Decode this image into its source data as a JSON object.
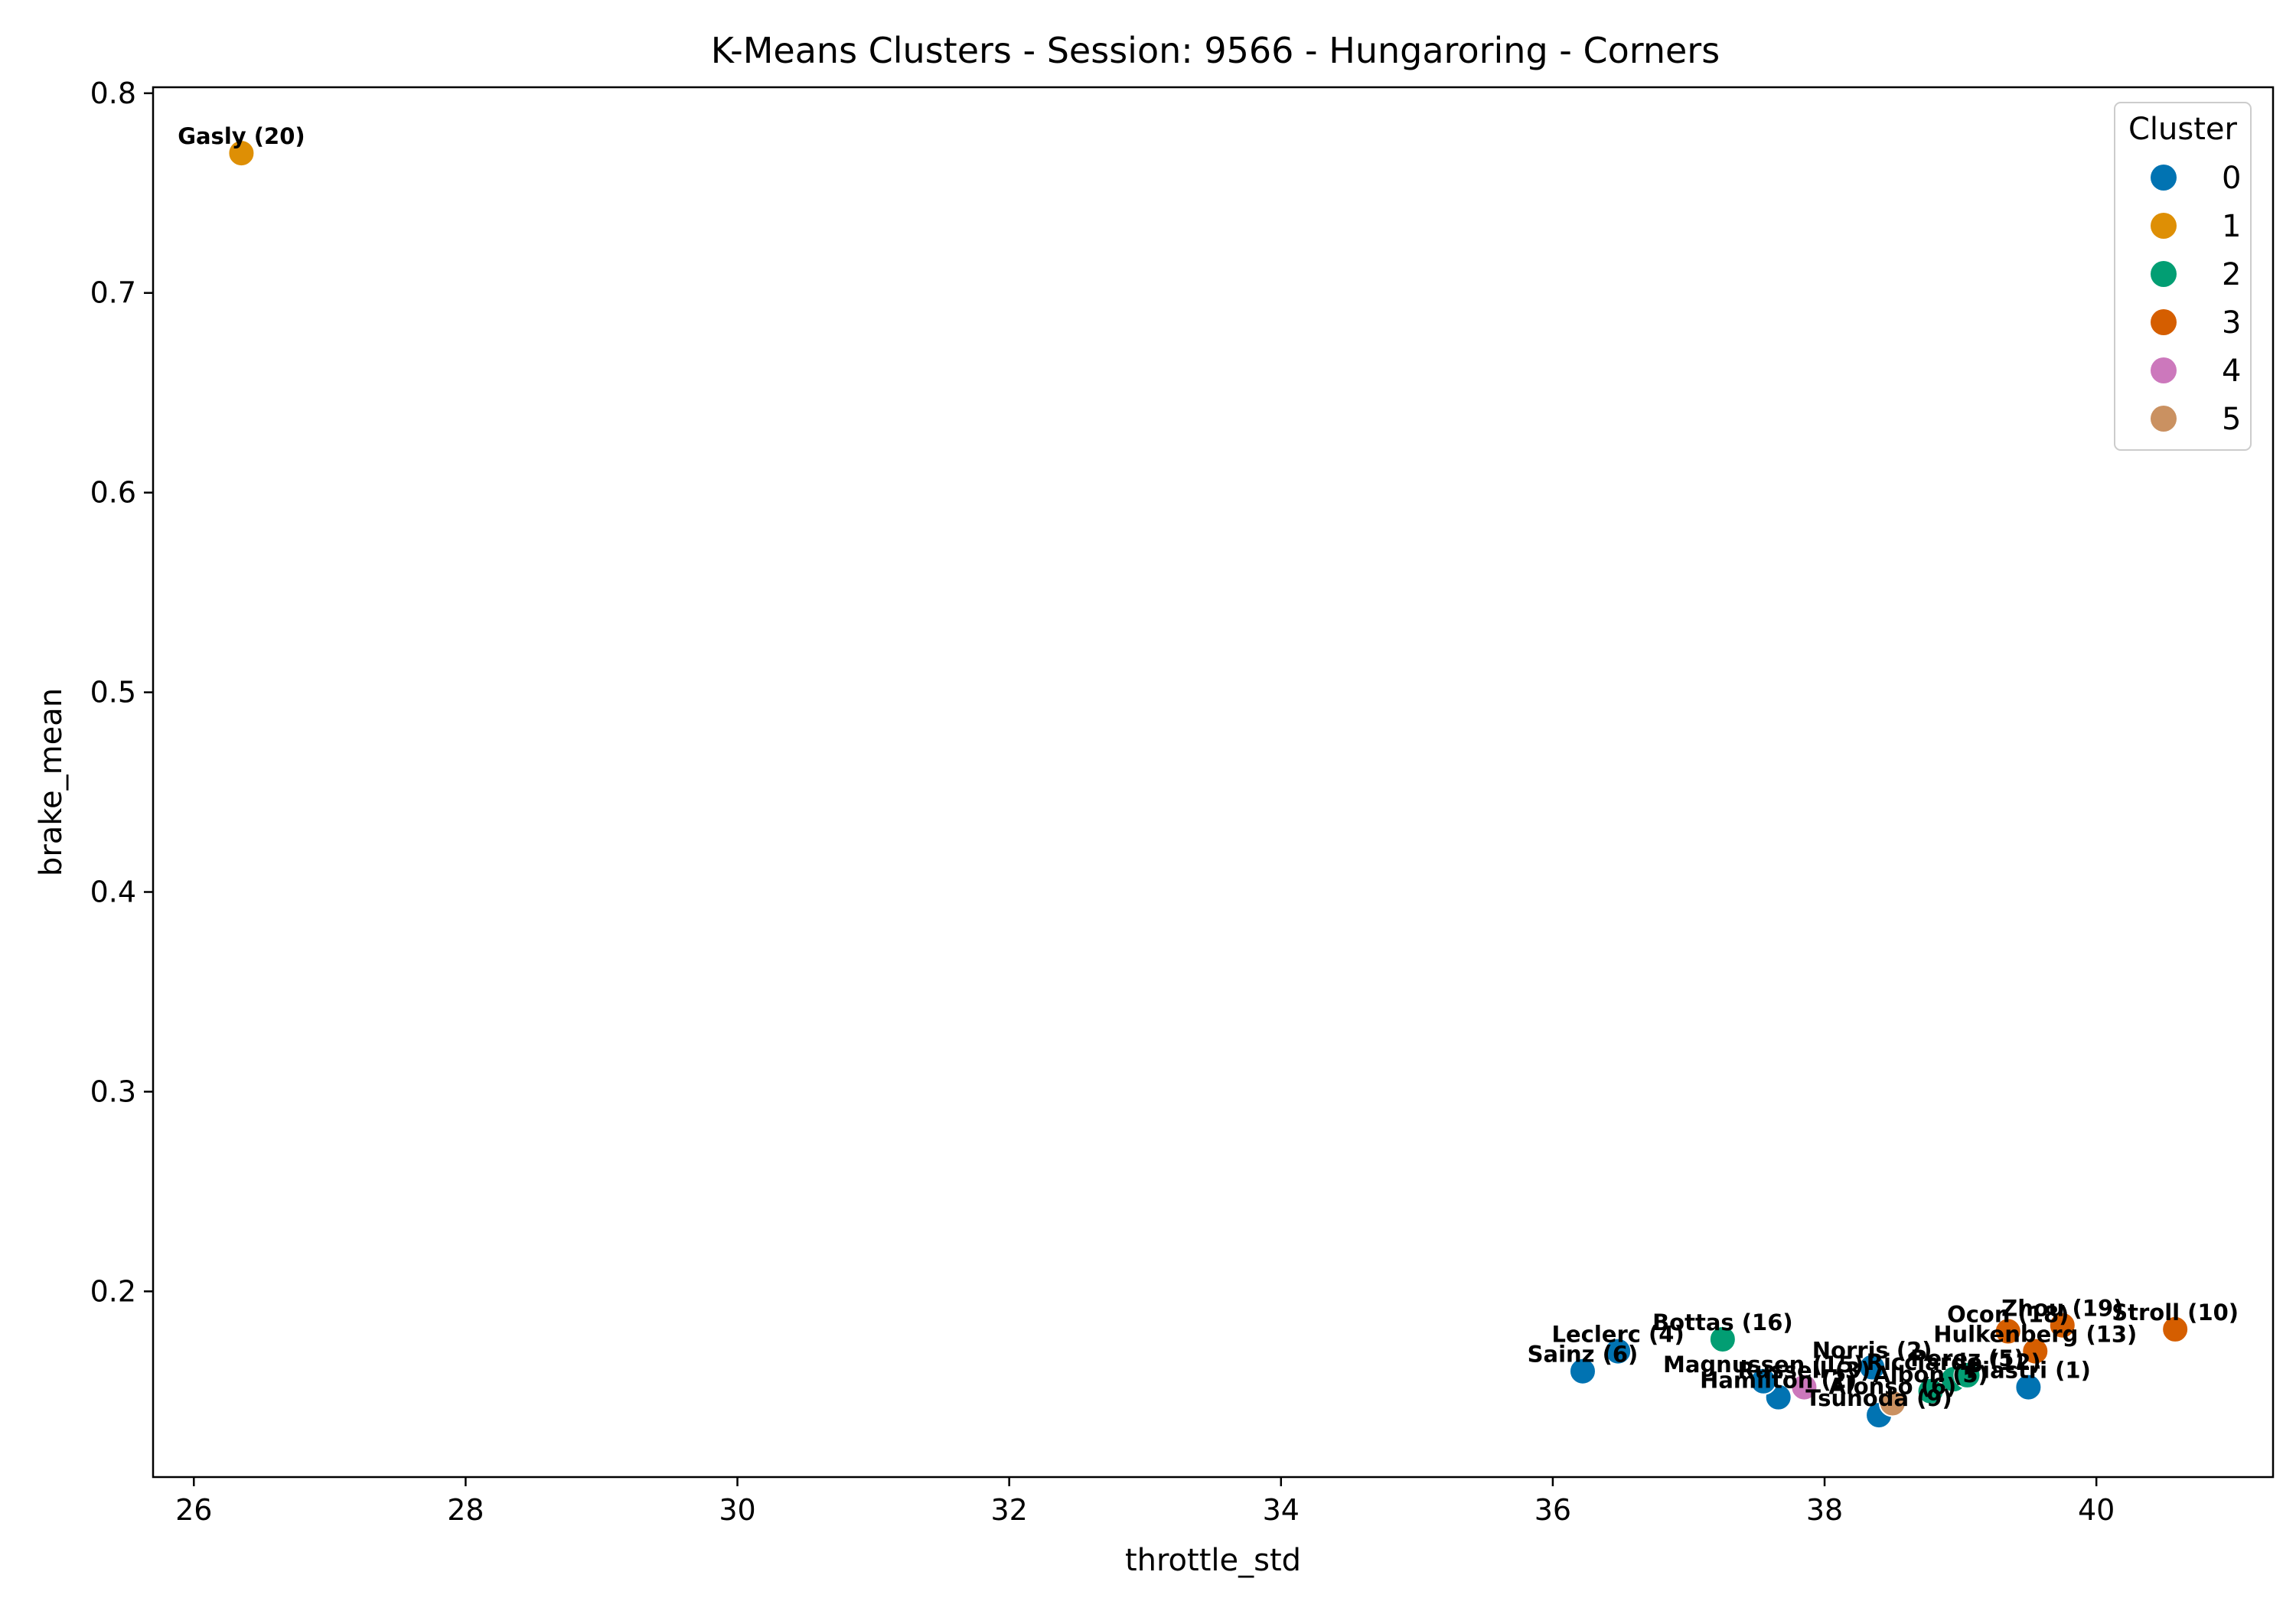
{
  "chart_data": {
    "type": "scatter",
    "title": "K-Means Clusters - Session: 9566 - Hungaroring - Corners",
    "xlabel": "throttle_std",
    "ylabel": "brake_mean",
    "xlim": [
      25.7,
      41.3
    ],
    "ylim": [
      0.107,
      0.803
    ],
    "xticks": [
      26,
      28,
      30,
      32,
      34,
      36,
      38,
      40
    ],
    "yticks": [
      0.2,
      0.3,
      0.4,
      0.5,
      0.6,
      0.7,
      0.8
    ],
    "xtick_labels": [
      "26",
      "28",
      "30",
      "32",
      "34",
      "36",
      "38",
      "40"
    ],
    "ytick_labels": [
      "0.2",
      "0.3",
      "0.4",
      "0.5",
      "0.6",
      "0.7",
      "0.8"
    ],
    "grid": false,
    "legend": {
      "title": "Cluster",
      "placement": "top-right",
      "entries": [
        {
          "label": "0",
          "color": "#0173b2"
        },
        {
          "label": "1",
          "color": "#de8f05"
        },
        {
          "label": "2",
          "color": "#029e73"
        },
        {
          "label": "3",
          "color": "#d55e00"
        },
        {
          "label": "4",
          "color": "#cc78bc"
        },
        {
          "label": "5",
          "color": "#ca9161"
        }
      ]
    },
    "points": [
      {
        "label": "Gasly (20)",
        "x": 26.35,
        "y": 0.77,
        "cluster": 1
      },
      {
        "label": "Sainz (6)",
        "x": 36.22,
        "y": 0.16,
        "cluster": 0
      },
      {
        "label": "Leclerc (4)",
        "x": 36.48,
        "y": 0.17,
        "cluster": 0
      },
      {
        "label": "Bottas (16)",
        "x": 37.25,
        "y": 0.176,
        "cluster": 2
      },
      {
        "label": "Hamilton (2)",
        "x": 37.66,
        "y": 0.147,
        "cluster": 0
      },
      {
        "label": "Magnussen (15)",
        "x": 37.55,
        "y": 0.155,
        "cluster": 0
      },
      {
        "label": "Russell (3)",
        "x": 37.85,
        "y": 0.152,
        "cluster": 4
      },
      {
        "label": "Tsunoda (9)",
        "x": 38.4,
        "y": 0.138,
        "cluster": 0
      },
      {
        "label": "Alonso (6)",
        "x": 38.5,
        "y": 0.144,
        "cluster": 5
      },
      {
        "label": "Norris (2)",
        "x": 38.35,
        "y": 0.162,
        "cluster": 0
      },
      {
        "label": "Albon (5)",
        "x": 38.78,
        "y": 0.15,
        "cluster": 2
      },
      {
        "label": "Ricciardo (12)",
        "x": 38.95,
        "y": 0.156,
        "cluster": 2
      },
      {
        "label": "Perez (5)",
        "x": 39.05,
        "y": 0.158,
        "cluster": 2
      },
      {
        "label": "Piastri (1)",
        "x": 39.5,
        "y": 0.152,
        "cluster": 0
      },
      {
        "label": "Hulkenberg (13)",
        "x": 39.55,
        "y": 0.17,
        "cluster": 3
      },
      {
        "label": "Ocon (18)",
        "x": 39.35,
        "y": 0.18,
        "cluster": 3
      },
      {
        "label": "Zhou (19)",
        "x": 39.75,
        "y": 0.183,
        "cluster": 3
      },
      {
        "label": "Stroll (10)",
        "x": 40.58,
        "y": 0.181,
        "cluster": 3
      }
    ]
  }
}
